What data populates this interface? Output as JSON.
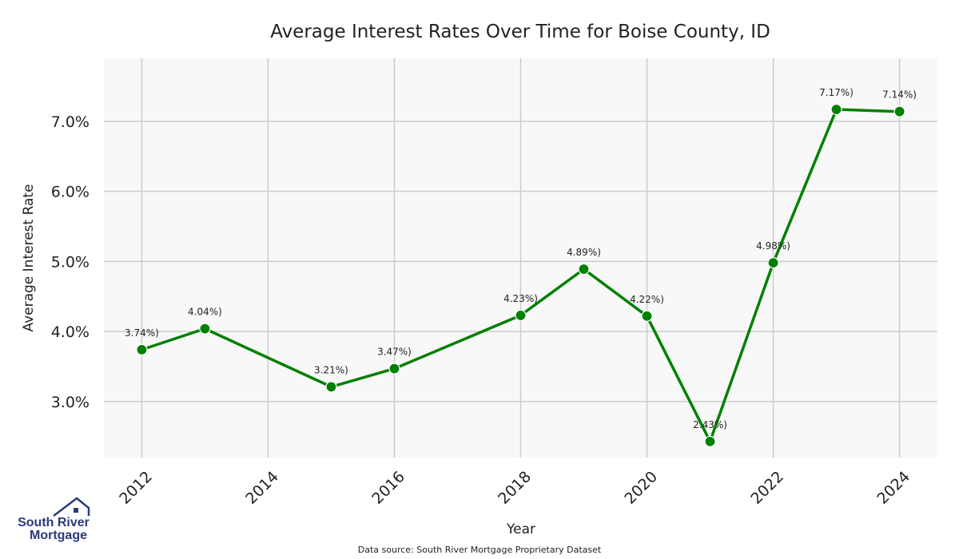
{
  "chart_data": {
    "type": "line",
    "title": "Average Interest Rates Over Time for Boise County, ID",
    "xlabel": "Year",
    "ylabel": "Average Interest Rate",
    "x": [
      2012,
      2013,
      2015,
      2016,
      2018,
      2019,
      2020,
      2021,
      2022,
      2023,
      2024
    ],
    "values": [
      3.74,
      4.04,
      3.21,
      3.47,
      4.23,
      4.89,
      4.22,
      2.43,
      4.98,
      7.17,
      7.14
    ],
    "point_labels": [
      "3.74%)",
      "4.04%)",
      "3.21%)",
      "3.47%)",
      "4.23%)",
      "4.89%)",
      "4.22%)",
      "2.43%)",
      "4.98%)",
      "7.17%)",
      "7.14%)"
    ],
    "x_ticks": [
      2012,
      2014,
      2016,
      2018,
      2020,
      2022,
      2024
    ],
    "y_ticks": [
      3.0,
      4.0,
      5.0,
      6.0,
      7.0
    ],
    "y_tick_labels": [
      "3.0%",
      "4.0%",
      "5.0%",
      "6.0%",
      "7.0%"
    ],
    "xlim": [
      2011.4,
      2024.6
    ],
    "ylim": [
      2.2,
      7.9
    ],
    "grid": true,
    "line_color": "#008000",
    "background_color": "#f8f8f8",
    "grid_color": "#cccccc"
  },
  "footer": {
    "source": "Data source: South River Mortgage Proprietary Dataset"
  },
  "logo": {
    "line1": "South River",
    "line2": "Mortgage",
    "color": "#2b3a7a"
  }
}
